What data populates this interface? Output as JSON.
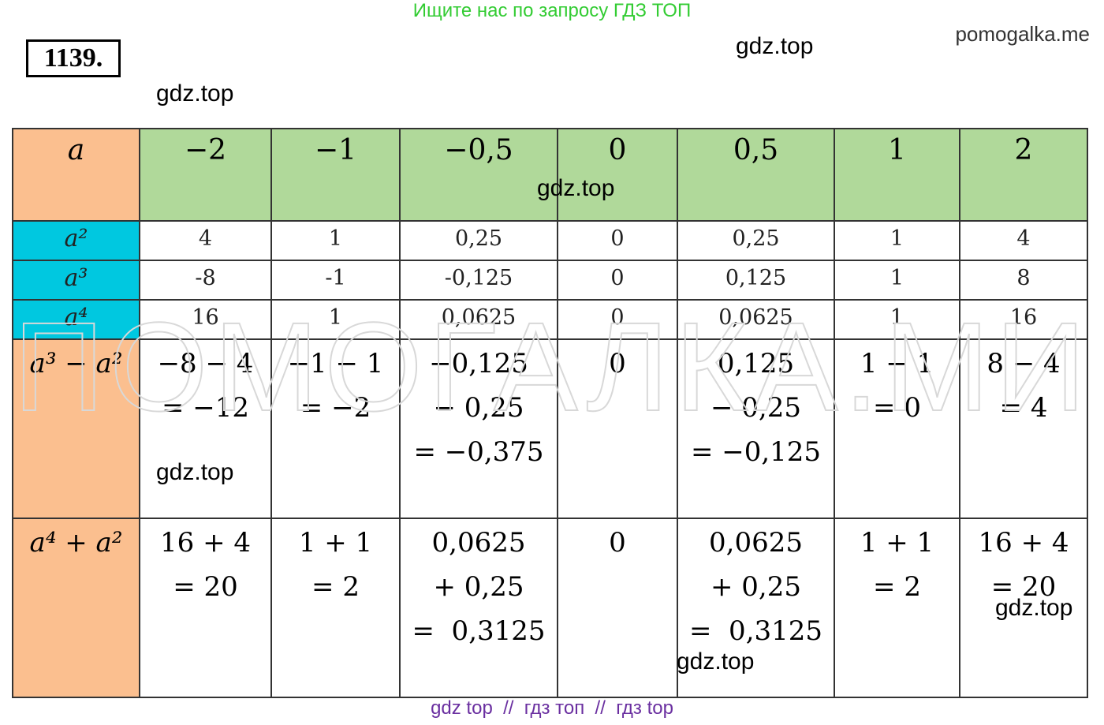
{
  "header": {
    "banner": "Ищите нас по запросу ГДЗ ТОП",
    "site": "pomogalka.me",
    "number": "1139."
  },
  "watermarks": [
    "gdz.top",
    "gdz.top",
    "gdz.top",
    "gdz.top",
    "gdz.top",
    "gdz.top"
  ],
  "background_mark": "ПОМОГАЛКА.МИ",
  "table": {
    "header": [
      "a",
      "−2",
      "−1",
      "−0,5",
      "0",
      "0,5",
      "1",
      "2"
    ],
    "rows": [
      {
        "label": "a²",
        "cells": [
          "4",
          "1",
          "0,25",
          "0",
          "0,25",
          "1",
          "4"
        ]
      },
      {
        "label": "a³",
        "cells": [
          "-8",
          "-1",
          "-0,125",
          "0",
          "0,125",
          "1",
          "8"
        ]
      },
      {
        "label": "a⁴",
        "cells": [
          "16",
          "1",
          "0,0625",
          "0",
          "0,0625",
          "1",
          "16"
        ]
      },
      {
        "label": "a³ − a²",
        "cells": [
          [
            "−8 − 4",
            "= −12"
          ],
          [
            "−1 − 1",
            "= −2"
          ],
          [
            "−0,125",
            "− 0,25",
            "= −0,375"
          ],
          [
            "0"
          ],
          [
            "0,125",
            "− 0,25",
            "= −0,125"
          ],
          [
            "1 − 1",
            "= 0"
          ],
          [
            "8 − 4",
            "= 4"
          ]
        ]
      },
      {
        "label": "a⁴ + a²",
        "cells": [
          [
            "16 + 4",
            "= 20"
          ],
          [
            "1 + 1",
            "= 2"
          ],
          [
            "0,0625",
            "+ 0,25",
            "=  0,3125"
          ],
          [
            "0"
          ],
          [
            "0,0625",
            "+ 0,25",
            "=  0,3125"
          ],
          [
            "1 + 1",
            "= 2"
          ],
          [
            "16 + 4",
            "= 20"
          ]
        ]
      }
    ]
  },
  "footer": "gdz top  //  гдз топ  //  гдз top"
}
